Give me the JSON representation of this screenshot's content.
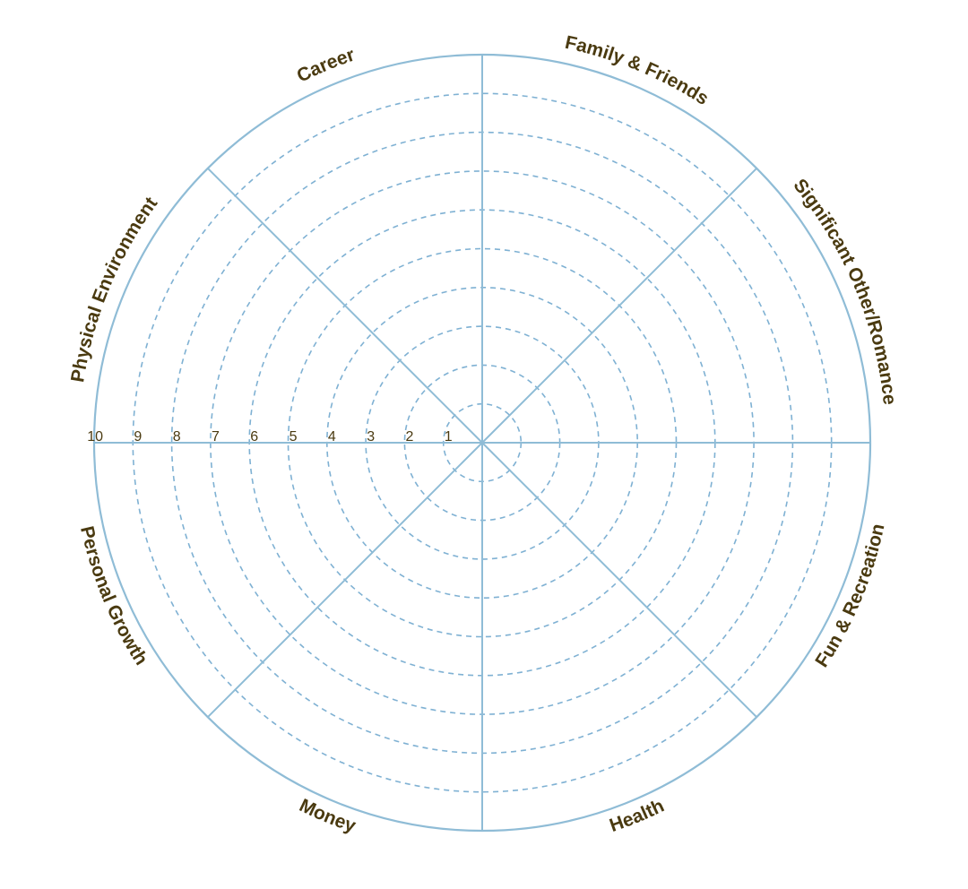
{
  "wheel": {
    "categories": [
      "Career",
      "Family & Friends",
      "Significant Other/Romance",
      "Fun & Recreation",
      "Health",
      "Money",
      "Personal Growth",
      "Physical Environment"
    ],
    "scale_labels": [
      "1",
      "2",
      "3",
      "4",
      "5",
      "6",
      "7",
      "8",
      "9",
      "10"
    ],
    "colors": {
      "line": "#8fbcd6",
      "dashed_ring": "#7fb1d3",
      "text": "#4a3a10"
    }
  }
}
